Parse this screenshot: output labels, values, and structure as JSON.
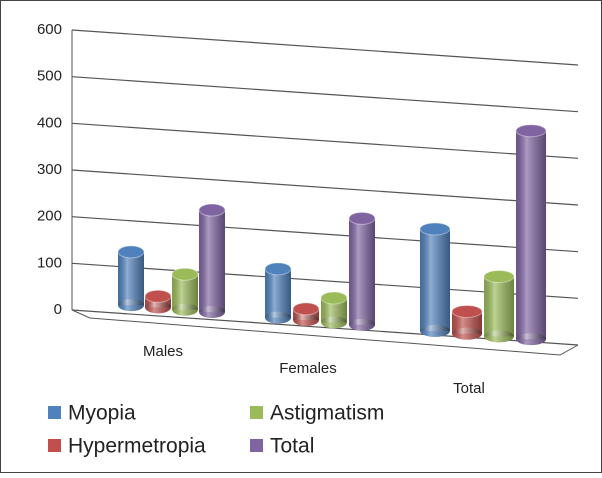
{
  "chart_data": {
    "type": "bar3d",
    "categories": [
      "Males",
      "Females",
      "Total"
    ],
    "series": [
      {
        "name": "Myopia",
        "color": "#4f81bd",
        "values": [
          120,
          110,
          230
        ]
      },
      {
        "name": "Hypermetropia",
        "color": "#c0504d",
        "values": [
          25,
          25,
          50
        ]
      },
      {
        "name": "Astigmatism",
        "color": "#9bbb59",
        "values": [
          80,
          55,
          135
        ]
      },
      {
        "name": "Total",
        "color": "#8064a2",
        "values": [
          230,
          240,
          470
        ]
      }
    ],
    "ylim": [
      0,
      600
    ],
    "yticks": [
      0,
      100,
      200,
      300,
      400,
      500,
      600
    ],
    "grid": true
  }
}
